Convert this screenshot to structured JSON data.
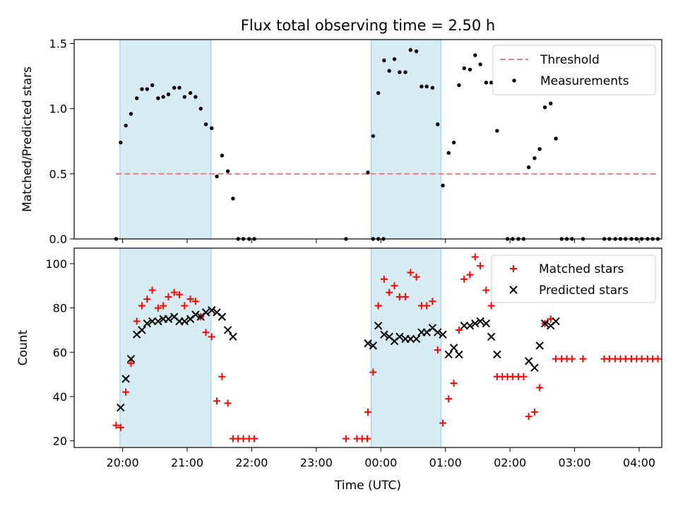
{
  "figure_title": "Flux total observing time = 2.50 h",
  "colors": {
    "threshold": "#f08080",
    "measurements": "#000000",
    "matched": "#ff0000",
    "predicted": "#000000",
    "shade_fill": "#add8e6",
    "shade_edge": "#87cefa"
  },
  "chart_data": [
    {
      "type": "scatter",
      "title": "Flux total observing time = 2.50 h",
      "xlabel": "",
      "ylabel": "Matched/Predicted stars",
      "x_unit": "hours since 20:00 UTC",
      "xlim": [
        -0.75,
        8.35
      ],
      "ylim": [
        0,
        1.53
      ],
      "yticks": [
        0.0,
        0.5,
        1.0,
        1.5
      ],
      "ytick_labels": [
        "0.0",
        "0.5",
        "1.0",
        "1.5"
      ],
      "shaded_x_ranges": [
        [
          -0.04,
          1.37
        ],
        [
          3.85,
          4.93
        ]
      ],
      "legend": {
        "position": "top-right",
        "entries": [
          "Threshold",
          "Measurements"
        ]
      },
      "threshold": {
        "name": "Threshold",
        "y": 0.5,
        "x_start": -0.1,
        "x_end": 8.3
      },
      "series": [
        {
          "name": "Measurements",
          "marker": "dot",
          "points": [
            [
              -0.1,
              0.0
            ],
            [
              -0.03,
              0.74
            ],
            [
              0.05,
              0.87
            ],
            [
              0.13,
              0.96
            ],
            [
              0.22,
              1.08
            ],
            [
              0.3,
              1.15
            ],
            [
              0.38,
              1.15
            ],
            [
              0.46,
              1.18
            ],
            [
              0.55,
              1.08
            ],
            [
              0.63,
              1.09
            ],
            [
              0.71,
              1.11
            ],
            [
              0.8,
              1.16
            ],
            [
              0.88,
              1.16
            ],
            [
              0.96,
              1.09
            ],
            [
              1.05,
              1.12
            ],
            [
              1.13,
              1.09
            ],
            [
              1.21,
              1.0
            ],
            [
              1.29,
              0.88
            ],
            [
              1.38,
              0.85
            ],
            [
              1.46,
              0.48
            ],
            [
              1.54,
              0.64
            ],
            [
              1.63,
              0.52
            ],
            [
              1.71,
              0.31
            ],
            [
              1.79,
              0.0
            ],
            [
              1.87,
              0.0
            ],
            [
              1.96,
              0.0
            ],
            [
              2.04,
              0.0
            ],
            [
              3.46,
              0.0
            ],
            [
              3.8,
              0.51
            ],
            [
              3.88,
              0.0
            ],
            [
              3.96,
              0.0
            ],
            [
              3.88,
              0.79
            ],
            [
              3.96,
              1.12
            ],
            [
              4.04,
              0.0
            ],
            [
              4.05,
              1.37
            ],
            [
              4.13,
              1.29
            ],
            [
              4.21,
              1.38
            ],
            [
              4.29,
              1.28
            ],
            [
              4.38,
              1.28
            ],
            [
              4.46,
              1.45
            ],
            [
              4.55,
              1.44
            ],
            [
              4.63,
              1.17
            ],
            [
              4.71,
              1.17
            ],
            [
              4.8,
              1.16
            ],
            [
              4.88,
              0.88
            ],
            [
              4.96,
              0.41
            ],
            [
              5.05,
              0.66
            ],
            [
              5.13,
              0.74
            ],
            [
              5.21,
              1.18
            ],
            [
              5.29,
              1.31
            ],
            [
              5.38,
              1.3
            ],
            [
              5.46,
              1.41
            ],
            [
              5.54,
              1.34
            ],
            [
              5.63,
              1.2
            ],
            [
              5.71,
              1.2
            ],
            [
              5.8,
              0.83
            ],
            [
              5.96,
              0.0
            ],
            [
              6.04,
              0.0
            ],
            [
              6.13,
              0.0
            ],
            [
              6.21,
              0.0
            ],
            [
              6.29,
              0.55
            ],
            [
              6.38,
              0.62
            ],
            [
              6.46,
              0.69
            ],
            [
              6.54,
              1.01
            ],
            [
              6.63,
              1.04
            ],
            [
              6.71,
              0.77
            ],
            [
              6.8,
              0.0
            ],
            [
              6.88,
              0.0
            ],
            [
              6.96,
              0.0
            ],
            [
              7.13,
              0.0
            ],
            [
              7.46,
              0.0
            ],
            [
              7.54,
              0.0
            ],
            [
              7.63,
              0.0
            ],
            [
              7.71,
              0.0
            ],
            [
              7.79,
              0.0
            ],
            [
              7.88,
              0.0
            ],
            [
              7.96,
              0.0
            ],
            [
              8.04,
              0.0
            ],
            [
              8.13,
              0.0
            ],
            [
              8.21,
              0.0
            ],
            [
              8.29,
              0.0
            ]
          ]
        }
      ]
    },
    {
      "type": "scatter",
      "title": "",
      "xlabel": "Time (UTC)",
      "ylabel": "Count",
      "x_unit": "hours since 20:00 UTC",
      "xlim": [
        -0.75,
        8.35
      ],
      "ylim": [
        17,
        107
      ],
      "yticks": [
        20,
        40,
        60,
        80,
        100
      ],
      "ytick_labels": [
        "20",
        "40",
        "60",
        "80",
        "100"
      ],
      "xticks": [
        0,
        1,
        2,
        3,
        4,
        5,
        6,
        7,
        8
      ],
      "xtick_labels": [
        "20:00",
        "21:00",
        "22:00",
        "23:00",
        "00:00",
        "01:00",
        "02:00",
        "03:00",
        "04:00"
      ],
      "shaded_x_ranges": [
        [
          -0.04,
          1.37
        ],
        [
          3.85,
          4.93
        ]
      ],
      "legend": {
        "position": "top-right",
        "entries": [
          "Matched stars",
          "Predicted stars"
        ]
      },
      "series": [
        {
          "name": "Matched stars",
          "marker": "plus",
          "points": [
            [
              -0.1,
              27
            ],
            [
              -0.03,
              26
            ],
            [
              0.05,
              42
            ],
            [
              0.13,
              55
            ],
            [
              0.22,
              74
            ],
            [
              0.3,
              81
            ],
            [
              0.38,
              84
            ],
            [
              0.46,
              88
            ],
            [
              0.55,
              80
            ],
            [
              0.63,
              81
            ],
            [
              0.71,
              85
            ],
            [
              0.8,
              87
            ],
            [
              0.88,
              86
            ],
            [
              0.96,
              81
            ],
            [
              1.05,
              84
            ],
            [
              1.13,
              83
            ],
            [
              1.21,
              76
            ],
            [
              1.29,
              69
            ],
            [
              1.38,
              67
            ],
            [
              1.46,
              38
            ],
            [
              1.54,
              49
            ],
            [
              1.63,
              37
            ],
            [
              1.71,
              21
            ],
            [
              1.79,
              21
            ],
            [
              1.87,
              21
            ],
            [
              1.96,
              21
            ],
            [
              2.04,
              21
            ],
            [
              3.46,
              21
            ],
            [
              3.8,
              33
            ],
            [
              3.63,
              21
            ],
            [
              3.71,
              21
            ],
            [
              3.79,
              21
            ],
            [
              3.88,
              51
            ],
            [
              3.96,
              81
            ],
            [
              4.05,
              93
            ],
            [
              4.13,
              87
            ],
            [
              4.21,
              90
            ],
            [
              4.29,
              85
            ],
            [
              4.38,
              85
            ],
            [
              4.46,
              96
            ],
            [
              4.55,
              94
            ],
            [
              4.63,
              81
            ],
            [
              4.71,
              81
            ],
            [
              4.8,
              83
            ],
            [
              4.88,
              61
            ],
            [
              4.96,
              28
            ],
            [
              5.05,
              39
            ],
            [
              5.13,
              46
            ],
            [
              5.21,
              70
            ],
            [
              5.29,
              93
            ],
            [
              5.38,
              95
            ],
            [
              5.46,
              103
            ],
            [
              5.54,
              99
            ],
            [
              5.63,
              88
            ],
            [
              5.71,
              81
            ],
            [
              5.8,
              49
            ],
            [
              5.88,
              49
            ],
            [
              5.96,
              49
            ],
            [
              6.04,
              49
            ],
            [
              6.13,
              49
            ],
            [
              6.21,
              49
            ],
            [
              6.29,
              31
            ],
            [
              6.38,
              33
            ],
            [
              6.46,
              44
            ],
            [
              6.54,
              73
            ],
            [
              6.63,
              75
            ],
            [
              6.71,
              57
            ],
            [
              6.8,
              57
            ],
            [
              6.88,
              57
            ],
            [
              6.96,
              57
            ],
            [
              7.13,
              57
            ],
            [
              7.46,
              57
            ],
            [
              7.54,
              57
            ],
            [
              7.63,
              57
            ],
            [
              7.71,
              57
            ],
            [
              7.79,
              57
            ],
            [
              7.88,
              57
            ],
            [
              7.96,
              57
            ],
            [
              8.04,
              57
            ],
            [
              8.13,
              57
            ],
            [
              8.21,
              57
            ],
            [
              8.29,
              57
            ]
          ]
        },
        {
          "name": "Predicted stars",
          "marker": "x",
          "points": [
            [
              -0.03,
              35
            ],
            [
              0.05,
              48
            ],
            [
              0.13,
              57
            ],
            [
              0.22,
              68
            ],
            [
              0.3,
              70
            ],
            [
              0.38,
              73
            ],
            [
              0.46,
              74
            ],
            [
              0.55,
              74
            ],
            [
              0.63,
              75
            ],
            [
              0.71,
              75
            ],
            [
              0.8,
              76
            ],
            [
              0.88,
              74
            ],
            [
              0.96,
              74
            ],
            [
              1.05,
              75
            ],
            [
              1.13,
              77
            ],
            [
              1.21,
              76
            ],
            [
              1.29,
              78
            ],
            [
              1.38,
              79
            ],
            [
              1.46,
              78
            ],
            [
              1.54,
              76
            ],
            [
              1.63,
              70
            ],
            [
              1.71,
              67
            ],
            [
              3.8,
              64
            ],
            [
              3.88,
              63
            ],
            [
              3.96,
              72
            ],
            [
              4.05,
              68
            ],
            [
              4.13,
              67
            ],
            [
              4.21,
              65
            ],
            [
              4.29,
              67
            ],
            [
              4.38,
              66
            ],
            [
              4.46,
              66
            ],
            [
              4.55,
              66
            ],
            [
              4.63,
              69
            ],
            [
              4.71,
              69
            ],
            [
              4.8,
              71
            ],
            [
              4.88,
              69
            ],
            [
              4.96,
              68
            ],
            [
              5.05,
              59
            ],
            [
              5.13,
              62
            ],
            [
              5.21,
              59
            ],
            [
              5.29,
              72
            ],
            [
              5.38,
              72
            ],
            [
              5.46,
              73
            ],
            [
              5.54,
              74
            ],
            [
              5.63,
              73
            ],
            [
              5.71,
              67
            ],
            [
              5.8,
              59
            ],
            [
              6.29,
              56
            ],
            [
              6.38,
              53
            ],
            [
              6.46,
              63
            ],
            [
              6.54,
              73
            ],
            [
              6.63,
              72
            ],
            [
              6.71,
              74
            ]
          ]
        }
      ]
    }
  ]
}
